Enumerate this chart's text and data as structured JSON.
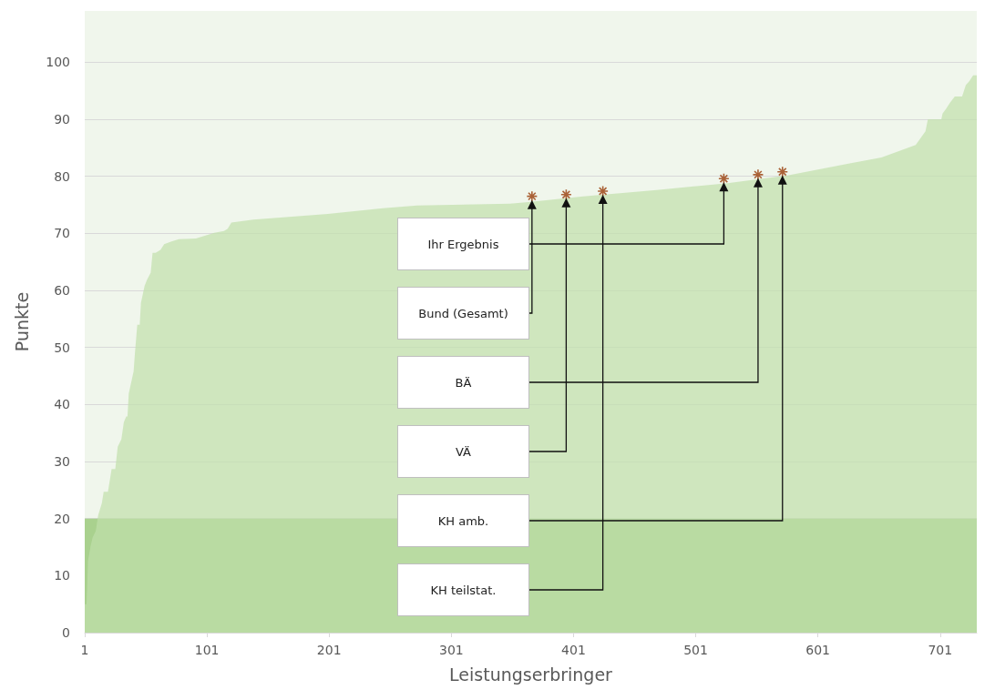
{
  "chart_data": {
    "type": "area",
    "xlabel": "Leistungserbringer",
    "ylabel": "Punkte",
    "xlim": [
      1,
      731
    ],
    "xticks": [
      1,
      101,
      201,
      301,
      401,
      501,
      601,
      701
    ],
    "ylim": [
      0,
      109
    ],
    "yticks": [
      0,
      10,
      20,
      30,
      40,
      50,
      60,
      70,
      80,
      90,
      100
    ],
    "grid": "y",
    "series": [
      {
        "color": "#c0dfab",
        "x": [
          1,
          2.5,
          3.7,
          5.9,
          7.5,
          10,
          12,
          15,
          16.5,
          20,
          23,
          26,
          28,
          31,
          33,
          35,
          36,
          37,
          41,
          42,
          44,
          46,
          47,
          50,
          52,
          55,
          56.5,
          59,
          63,
          66,
          72,
          78,
          92,
          98,
          107,
          115,
          118,
          121,
          139,
          200,
          245,
          273,
          349,
          364,
          409,
          469,
          527,
          577,
          628,
          653,
          681,
          689,
          691,
          702,
          703,
          706,
          709,
          713,
          719,
          722,
          725,
          728,
          731
        ],
        "values": [
          5,
          5,
          12.6,
          15.3,
          16.7,
          17.8,
          20.6,
          22.7,
          24.7,
          24.7,
          28.7,
          28.7,
          32.6,
          33.9,
          36.9,
          37.9,
          37.9,
          41.9,
          45.8,
          48.8,
          54,
          54,
          57.8,
          60.8,
          61.9,
          63.1,
          66.6,
          66.6,
          67.1,
          68.1,
          68.6,
          69,
          69.1,
          69.5,
          70.1,
          70.4,
          70.8,
          71.9,
          72.4,
          73.4,
          74.4,
          74.9,
          75.2,
          75.5,
          76.5,
          77.6,
          78.8,
          80.2,
          82.3,
          83.3,
          85.5,
          87.9,
          90,
          90,
          91,
          91.9,
          92.9,
          94,
          94,
          96,
          96.7,
          97.7,
          97.7
        ]
      },
      {
        "type": "scatter",
        "color": "#993d0a",
        "marker": "cross",
        "x": [
          524,
          367,
          552,
          395,
          572,
          425
        ],
        "values": [
          79.6,
          76.5,
          80.3,
          76.8,
          80.8,
          77.4
        ]
      }
    ],
    "bands": [
      {
        "axis": "y",
        "from": 0,
        "to": 20,
        "color": "#a9d18e"
      }
    ],
    "annotations": [
      "Ihr Ergebnis",
      "Bund (Gesamt)",
      "BÄ",
      "VÄ",
      "KH amb.",
      "KH teilstat."
    ]
  }
}
